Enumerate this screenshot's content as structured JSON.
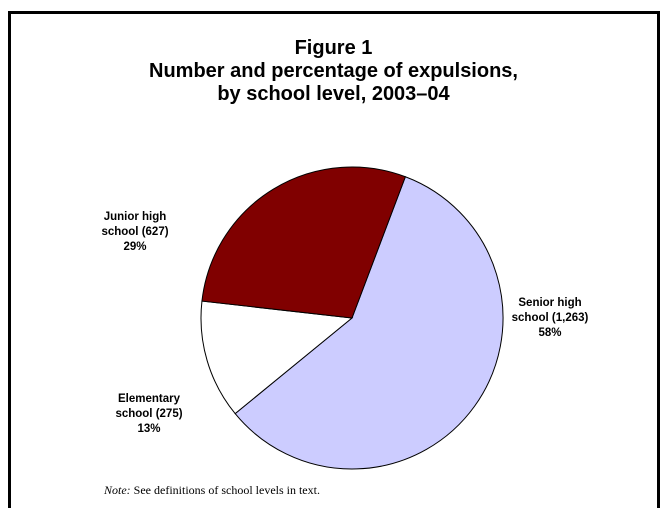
{
  "chart_data": {
    "type": "pie",
    "title_lines": [
      "Figure 1",
      "Number and percentage of expulsions,",
      "by school level, 2003–04"
    ],
    "slices": [
      {
        "name_line1": "Senior high",
        "name_line2": "school (1,263)",
        "value": 1263,
        "percent_label": "58%",
        "color": "#ccccff"
      },
      {
        "name_line1": "Elementary",
        "name_line2": "school (275)",
        "value": 275,
        "percent_label": "13%",
        "color": "#ffffff"
      },
      {
        "name_line1": "Junior high",
        "name_line2": "school (627)",
        "value": 627,
        "percent_label": "29%",
        "color": "#800000"
      }
    ],
    "note_label": "Note:",
    "note_text": " See definitions of school levels in text."
  }
}
